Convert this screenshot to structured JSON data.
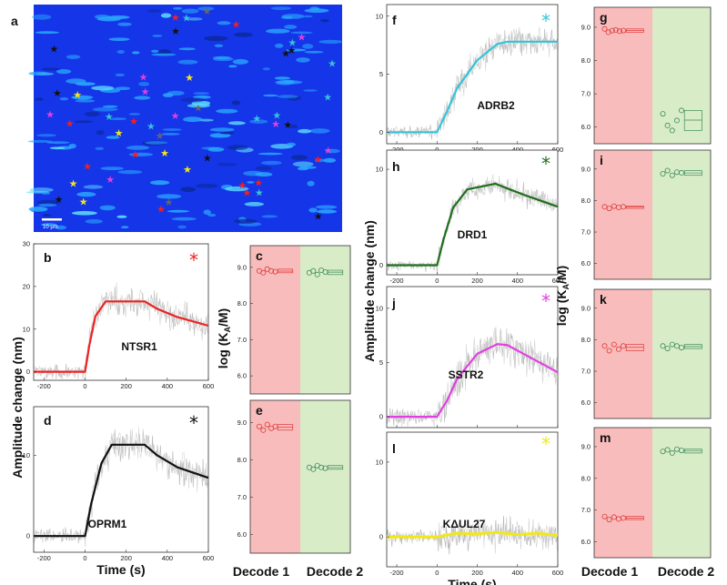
{
  "figure": {
    "time_axis_label": "Time (s)",
    "amplitude_axis_label": "Amplitude change (nm)",
    "logka_axis_label": "log (K",
    "logka_sub": "A",
    "logka_tail": "/M)",
    "decode1": "Decode 1",
    "decode2": "Decode 2",
    "scale_bar_label": "10 μm",
    "colors": {
      "red": "#ee2222",
      "black": "#111111",
      "cyan": "#33c4d8",
      "green": "#1f6e1c",
      "magenta": "#e040e0",
      "yellow": "#f2e818",
      "pink_bg": "#f9bcbc",
      "green_bg": "#d9ecc8",
      "blue_bg": "#1535e8"
    }
  },
  "chart_data": [
    {
      "panel": "a",
      "type": "image",
      "title": "wide-field image with marked cells",
      "scale_bar": "10 μm",
      "markers": [
        {
          "color": "red",
          "count": 11
        },
        {
          "color": "black",
          "count": 9
        },
        {
          "color": "cyan",
          "count": 9
        },
        {
          "color": "magenta",
          "count": 8
        },
        {
          "color": "yellow",
          "count": 7
        },
        {
          "color": "gray",
          "count": 4
        }
      ]
    },
    {
      "panel": "b",
      "type": "line",
      "gene": "NTSR1",
      "star_color": "red",
      "xlim": [
        -250,
        600
      ],
      "ylim": [
        -2,
        30
      ],
      "xticks": [
        -200,
        0,
        200,
        400,
        600
      ],
      "yticks": [
        0,
        10,
        20,
        30
      ],
      "fit": {
        "x": [
          -250,
          0,
          20,
          50,
          100,
          290,
          350,
          450,
          600
        ],
        "y": [
          0,
          0,
          6,
          13,
          16.5,
          16.5,
          14.8,
          12.8,
          10.8
        ]
      },
      "noise_sd": 2.5
    },
    {
      "panel": "d",
      "type": "line",
      "gene": "OPRM1",
      "star_color": "black",
      "xlim": [
        -250,
        600
      ],
      "ylim": [
        -2,
        16
      ],
      "xticks": [
        -200,
        0,
        200,
        400,
        600
      ],
      "yticks": [
        0,
        10
      ],
      "fit": {
        "x": [
          -250,
          0,
          30,
          80,
          130,
          290,
          350,
          450,
          600
        ],
        "y": [
          0,
          0,
          4,
          9,
          11.3,
          11.3,
          10,
          8.5,
          7.2
        ]
      },
      "noise_sd": 1.5,
      "xlabel": "Time (s)"
    },
    {
      "panel": "f",
      "type": "line",
      "gene": "ADRB2",
      "star_color": "cyan",
      "xlim": [
        -250,
        600
      ],
      "ylim": [
        -1,
        11
      ],
      "xticks": [
        -200,
        0,
        200,
        400,
        600
      ],
      "yticks": [
        0,
        5,
        10
      ],
      "fit": {
        "x": [
          -250,
          0,
          50,
          100,
          200,
          300,
          350,
          600
        ],
        "y": [
          0,
          0,
          1.8,
          3.8,
          6.2,
          7.6,
          7.8,
          7.8
        ]
      },
      "noise_sd": 0.9
    },
    {
      "panel": "h",
      "type": "line",
      "gene": "DRD1",
      "star_color": "green",
      "xlim": [
        -250,
        600
      ],
      "ylim": [
        -1,
        12
      ],
      "xticks": [
        -200,
        0,
        200,
        400,
        600
      ],
      "yticks": [
        0,
        10
      ],
      "fit": {
        "x": [
          -250,
          0,
          30,
          80,
          150,
          290,
          350,
          450,
          600
        ],
        "y": [
          0,
          0,
          2.5,
          6,
          7.9,
          8.5,
          8,
          7.2,
          6.1
        ]
      },
      "noise_sd": 0.8
    },
    {
      "panel": "j",
      "type": "line",
      "gene": "SSTR2",
      "star_color": "magenta",
      "xlim": [
        -250,
        600
      ],
      "ylim": [
        -1,
        12
      ],
      "xticks": [
        -200,
        0,
        200,
        400,
        600
      ],
      "yticks": [
        0,
        5,
        10
      ],
      "fit": {
        "x": [
          -250,
          0,
          50,
          100,
          200,
          300,
          350,
          450,
          600
        ],
        "y": [
          0,
          0,
          1.5,
          3.5,
          5.8,
          6.7,
          6.6,
          5.6,
          4.1
        ]
      },
      "noise_sd": 1.2
    },
    {
      "panel": "l",
      "type": "line",
      "gene": "KΔUL27",
      "star_color": "yellow",
      "xlim": [
        -250,
        600
      ],
      "ylim": [
        -4,
        14
      ],
      "xticks": [
        -200,
        0,
        200,
        400,
        600
      ],
      "yticks": [
        0,
        10
      ],
      "fit": {
        "x": [
          -250,
          0,
          100,
          200,
          300,
          400,
          500,
          600
        ],
        "y": [
          0,
          0,
          0.5,
          0.4,
          0.6,
          0.3,
          0.5,
          0.2
        ]
      },
      "noise_sd": 1.5,
      "xlabel": "Time (s)"
    },
    {
      "panel": "c",
      "type": "scatter",
      "groups": [
        "Decode 1",
        "Decode 2"
      ],
      "ylim": [
        5.5,
        9.6
      ],
      "yticks": [
        6.0,
        7.0,
        8.0,
        9.0
      ],
      "decode1": [
        8.9,
        8.85,
        8.95,
        8.9,
        8.88
      ],
      "decode2": [
        8.85,
        8.9,
        8.8,
        8.92,
        8.87
      ]
    },
    {
      "panel": "e",
      "type": "scatter",
      "groups": [
        "Decode 1",
        "Decode 2"
      ],
      "ylim": [
        5.5,
        9.6
      ],
      "yticks": [
        6.0,
        7.0,
        8.0,
        9.0
      ],
      "decode1": [
        8.9,
        8.8,
        8.95,
        8.85,
        8.9
      ],
      "decode2": [
        7.8,
        7.75,
        7.85,
        7.8,
        7.78
      ]
    },
    {
      "panel": "g",
      "type": "scatter",
      "groups": [
        "Decode 1",
        "Decode 2"
      ],
      "ylim": [
        5.5,
        9.6
      ],
      "yticks": [
        6.0,
        7.0,
        8.0,
        9.0
      ],
      "decode1": [
        8.95,
        8.85,
        8.9,
        8.92,
        8.88,
        8.9
      ],
      "decode2": [
        6.4,
        6.05,
        5.9,
        6.2,
        6.5
      ]
    },
    {
      "panel": "i",
      "type": "scatter",
      "groups": [
        "Decode 1",
        "Decode 2"
      ],
      "ylim": [
        5.5,
        9.6
      ],
      "yticks": [
        6.0,
        7.0,
        8.0,
        9.0
      ],
      "decode1": [
        7.8,
        7.75,
        7.82,
        7.78,
        7.8
      ],
      "decode2": [
        8.85,
        8.95,
        8.8,
        8.9,
        8.88
      ]
    },
    {
      "panel": "k",
      "type": "scatter",
      "groups": [
        "Decode 1",
        "Decode 2"
      ],
      "ylim": [
        5.5,
        9.6
      ],
      "yticks": [
        6.0,
        7.0,
        8.0,
        9.0
      ],
      "decode1": [
        7.8,
        7.65,
        7.85,
        7.7,
        7.8
      ],
      "decode2": [
        7.8,
        7.72,
        7.85,
        7.8,
        7.75
      ]
    },
    {
      "panel": "m",
      "type": "scatter",
      "groups": [
        "Decode 1",
        "Decode 2"
      ],
      "ylim": [
        5.5,
        9.6
      ],
      "yticks": [
        6.0,
        7.0,
        8.0,
        9.0
      ],
      "decode1": [
        6.8,
        6.7,
        6.78,
        6.72,
        6.75
      ],
      "decode2": [
        8.85,
        8.9,
        8.8,
        8.92,
        8.88
      ]
    }
  ]
}
